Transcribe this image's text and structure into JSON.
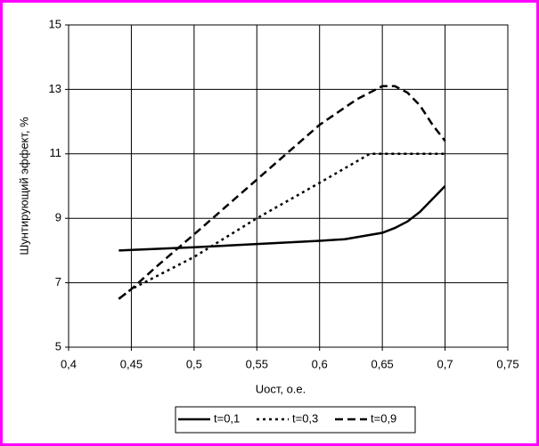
{
  "chart_data": {
    "type": "line",
    "x_label": "Uост, о.е.",
    "y_label": "Шунтирующий эффект, %",
    "xlim": [
      0.4,
      0.75
    ],
    "xticks": [
      {
        "value": 0.4,
        "label": "0,4"
      },
      {
        "value": 0.45,
        "label": "0,45"
      },
      {
        "value": 0.5,
        "label": "0,5"
      },
      {
        "value": 0.55,
        "label": "0,55"
      },
      {
        "value": 0.6,
        "label": "0,6"
      },
      {
        "value": 0.65,
        "label": "0,65"
      },
      {
        "value": 0.7,
        "label": "0,7"
      },
      {
        "value": 0.75,
        "label": "0,75"
      }
    ],
    "ylim": [
      5,
      15
    ],
    "yticks": [
      5,
      7,
      9,
      11,
      13,
      15
    ],
    "grid": true,
    "legend": "bottom",
    "series": [
      {
        "name": "t=0,1",
        "color": "#000000",
        "style": "solid",
        "x": [
          0.44,
          0.5,
          0.55,
          0.6,
          0.62,
          0.65,
          0.66,
          0.67,
          0.68,
          0.69,
          0.7
        ],
        "values": [
          8.0,
          8.1,
          8.2,
          8.3,
          8.35,
          8.55,
          8.7,
          8.9,
          9.2,
          9.6,
          10.0
        ]
      },
      {
        "name": "t=0,3",
        "color": "#000000",
        "style": "dotted",
        "x": [
          0.44,
          0.45,
          0.5,
          0.55,
          0.6,
          0.64,
          0.65,
          0.7
        ],
        "values": [
          6.5,
          6.8,
          7.8,
          9.0,
          10.1,
          11.0,
          11.0,
          11.0
        ]
      },
      {
        "name": "t=0,9",
        "color": "#000000",
        "style": "dashed",
        "x": [
          0.44,
          0.45,
          0.47,
          0.5,
          0.55,
          0.6,
          0.63,
          0.65,
          0.66,
          0.67,
          0.68,
          0.69,
          0.7
        ],
        "values": [
          6.5,
          6.8,
          7.5,
          8.5,
          10.2,
          11.9,
          12.7,
          13.1,
          13.1,
          12.9,
          12.5,
          11.9,
          11.4
        ]
      }
    ]
  }
}
